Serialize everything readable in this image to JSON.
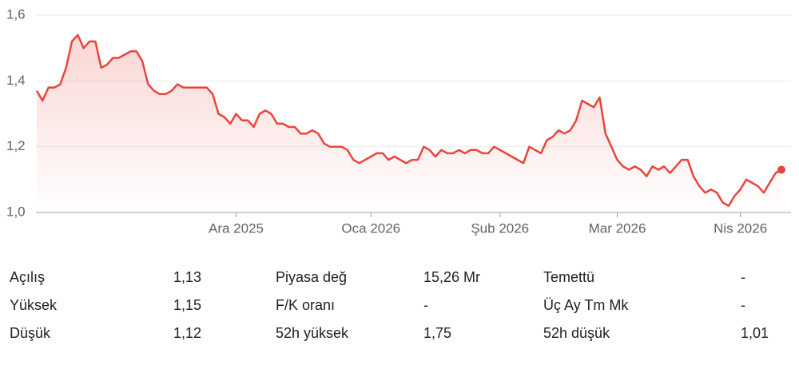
{
  "chart_data": {
    "type": "line",
    "color": "#e8453c",
    "grid": true,
    "ylim": [
      1.0,
      1.6
    ],
    "yticks": [
      {
        "value": 1.0,
        "label": "1,0"
      },
      {
        "value": 1.2,
        "label": "1,2"
      },
      {
        "value": 1.4,
        "label": "1,4"
      },
      {
        "value": 1.6,
        "label": "1,6"
      }
    ],
    "xlim": [
      0,
      127
    ],
    "xticks": [
      {
        "value": 34,
        "label": "Ara 2025"
      },
      {
        "value": 57,
        "label": "Oca 2026"
      },
      {
        "value": 79,
        "label": "Şub 2026"
      },
      {
        "value": 99,
        "label": "Mar 2026"
      },
      {
        "value": 120,
        "label": "Nis 2026"
      }
    ],
    "values": [
      1.37,
      1.34,
      1.38,
      1.38,
      1.39,
      1.44,
      1.52,
      1.54,
      1.5,
      1.52,
      1.52,
      1.44,
      1.45,
      1.47,
      1.47,
      1.48,
      1.49,
      1.49,
      1.46,
      1.39,
      1.37,
      1.36,
      1.36,
      1.37,
      1.39,
      1.38,
      1.38,
      1.38,
      1.38,
      1.38,
      1.36,
      1.3,
      1.29,
      1.27,
      1.3,
      1.28,
      1.28,
      1.26,
      1.3,
      1.31,
      1.3,
      1.27,
      1.27,
      1.26,
      1.26,
      1.24,
      1.24,
      1.25,
      1.24,
      1.21,
      1.2,
      1.2,
      1.2,
      1.19,
      1.16,
      1.15,
      1.16,
      1.17,
      1.18,
      1.18,
      1.16,
      1.17,
      1.16,
      1.15,
      1.16,
      1.16,
      1.2,
      1.19,
      1.17,
      1.19,
      1.18,
      1.18,
      1.19,
      1.18,
      1.19,
      1.19,
      1.18,
      1.18,
      1.2,
      1.19,
      1.18,
      1.17,
      1.16,
      1.15,
      1.2,
      1.19,
      1.18,
      1.22,
      1.23,
      1.25,
      1.24,
      1.25,
      1.28,
      1.34,
      1.33,
      1.32,
      1.35,
      1.24,
      1.2,
      1.16,
      1.14,
      1.13,
      1.14,
      1.13,
      1.11,
      1.14,
      1.13,
      1.14,
      1.12,
      1.14,
      1.16,
      1.16,
      1.11,
      1.08,
      1.06,
      1.07,
      1.06,
      1.03,
      1.02,
      1.05,
      1.07,
      1.1,
      1.09,
      1.08,
      1.06,
      1.09,
      1.12,
      1.13
    ]
  },
  "stats": {
    "rows": [
      [
        "Açılış",
        "1,13",
        "Piyasa değ",
        "15,26 Mr",
        "Temettü",
        "-"
      ],
      [
        "Yüksek",
        "1,15",
        "F/K oranı",
        "-",
        "Üç Ay Tm Mk",
        "-"
      ],
      [
        "Düşük",
        "1,12",
        "52h yüksek",
        "1,75",
        "52h düşük",
        "1,01"
      ]
    ]
  }
}
